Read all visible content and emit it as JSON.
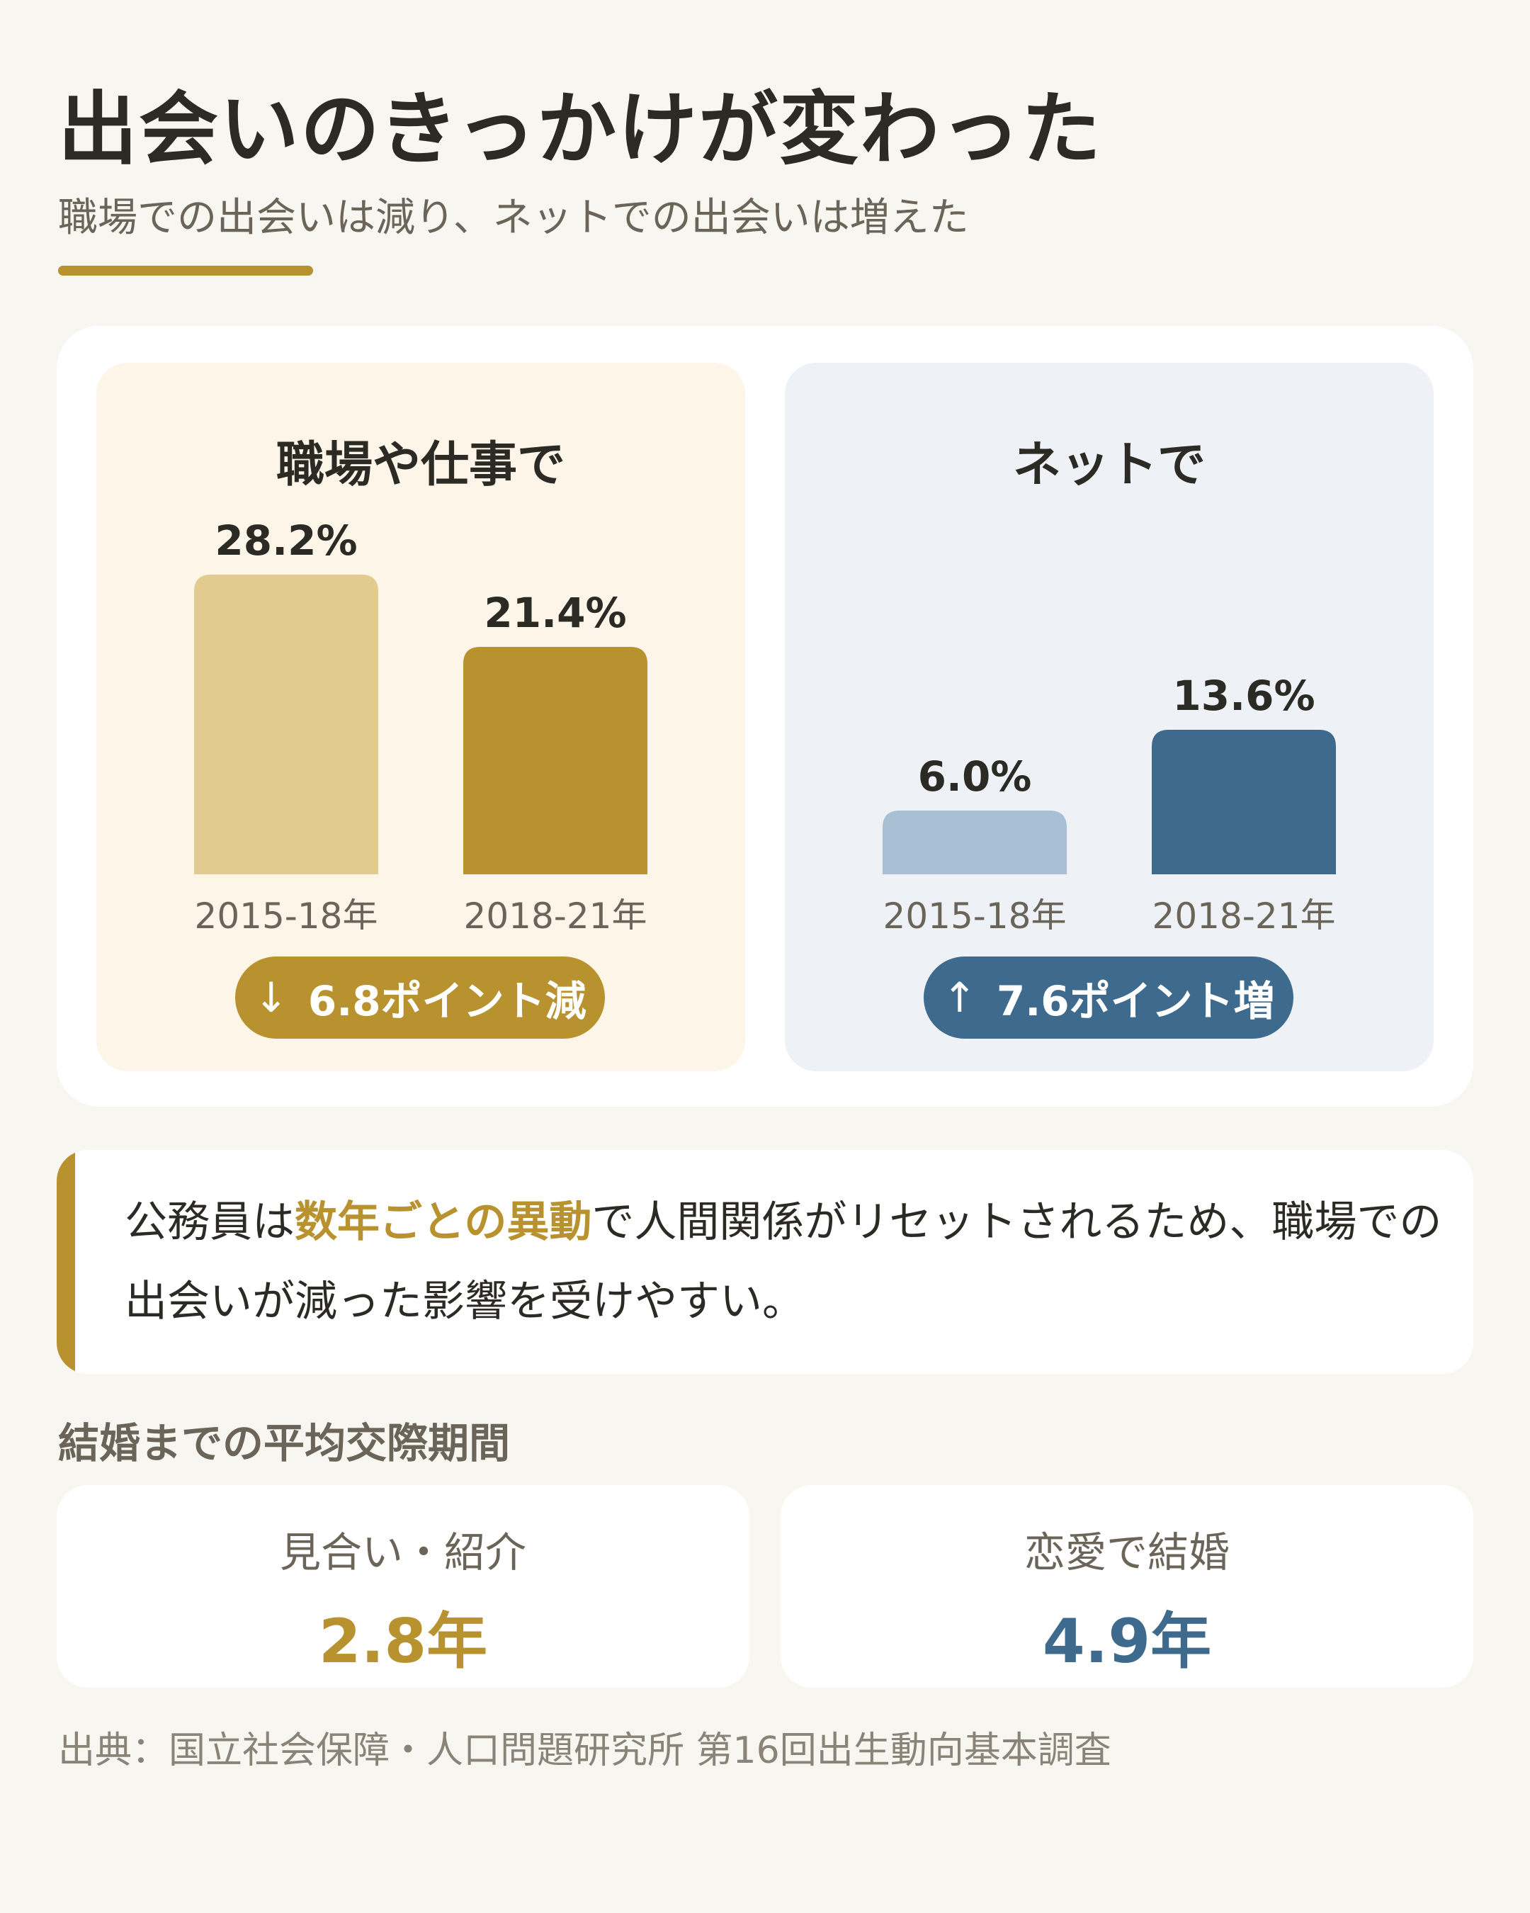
{
  "header": {
    "title": "出会いのきっかけが変わった",
    "subtitle": "職場での出会いは減り、ネットでの出会いは増えた"
  },
  "colors": {
    "accent_gold": "#b8922f",
    "light_gold": "#e3cb8f",
    "accent_blue": "#3d6a8d",
    "light_blue": "#a9bfd4"
  },
  "chart_data": [
    {
      "type": "bar",
      "title": "職場や仕事で",
      "categories": [
        "2015-18年",
        "2018-21年"
      ],
      "values": [
        28.2,
        21.4
      ],
      "value_labels": [
        "28.2%",
        "21.4%"
      ],
      "unit": "%",
      "ylim": [
        0,
        30
      ],
      "colors": [
        "#e3cb8f",
        "#b8922f"
      ],
      "change_label": "6.8ポイント減",
      "change_arrow": "↓"
    },
    {
      "type": "bar",
      "title": "ネットで",
      "categories": [
        "2015-18年",
        "2018-21年"
      ],
      "values": [
        6.0,
        13.6
      ],
      "value_labels": [
        "6.0%",
        "13.6%"
      ],
      "unit": "%",
      "ylim": [
        0,
        30
      ],
      "colors": [
        "#a9bfd4",
        "#3d6a8d"
      ],
      "change_label": "7.6ポイント増",
      "change_arrow": "↑"
    }
  ],
  "note": {
    "before": "公務員は",
    "highlight": "数年ごとの異動",
    "after": "で人間関係がリセットされるため、職場での出会いが減った影響を受けやすい。"
  },
  "dating_period": {
    "label": "結婚までの平均交際期間",
    "items": [
      {
        "label": "見合い・紹介",
        "value": "2.8年"
      },
      {
        "label": "恋愛で結婚",
        "value": "4.9年"
      }
    ]
  },
  "source": "出典：国立社会保障・人口問題研究所 第16回出生動向基本調査"
}
